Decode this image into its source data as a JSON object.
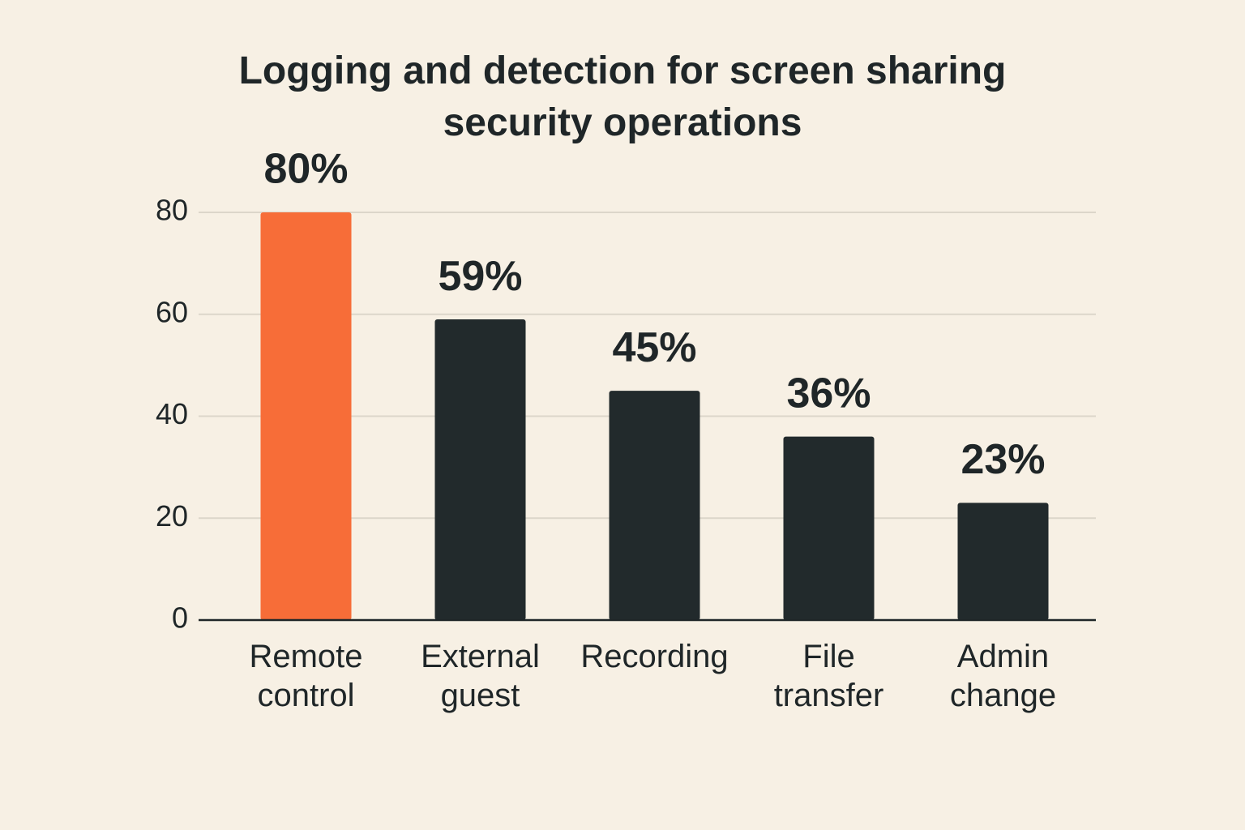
{
  "chart_data": {
    "type": "bar",
    "title": "Logging and detection for screen sharing security operations",
    "categories": [
      "Remote control",
      "External guest",
      "Recording",
      "File transfer",
      "Admin change"
    ],
    "values": [
      80,
      59,
      45,
      36,
      23
    ],
    "value_labels": [
      "80%",
      "59%",
      "45%",
      "36%",
      "23%"
    ],
    "colors": [
      "#f76d38",
      "#222a2c",
      "#222a2c",
      "#222a2c",
      "#222a2c"
    ],
    "ylim": [
      0,
      80
    ],
    "yticks": [
      0,
      20,
      40,
      60,
      80
    ],
    "grid": true
  }
}
